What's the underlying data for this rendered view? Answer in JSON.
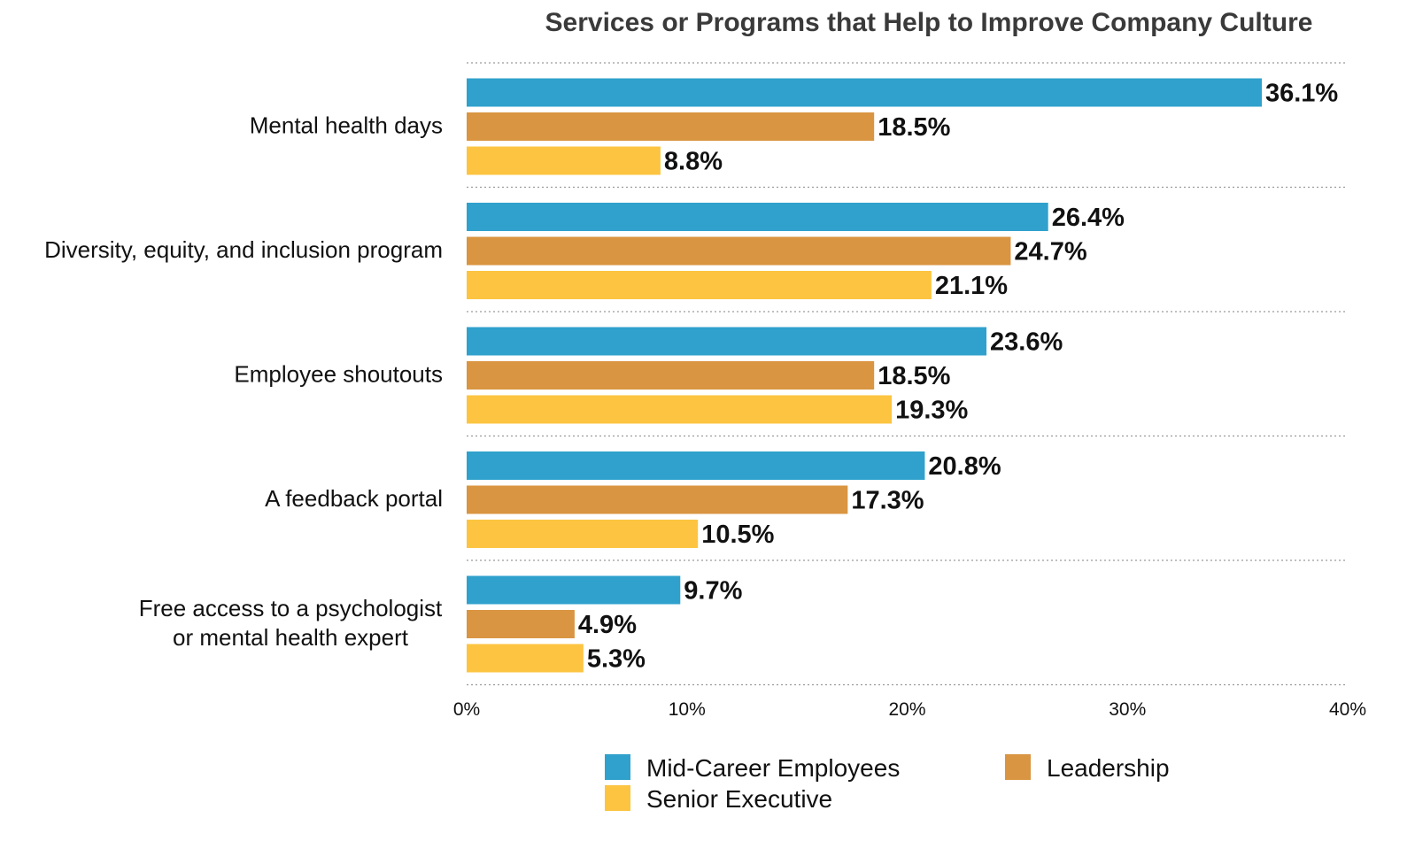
{
  "chart_data": {
    "type": "bar",
    "orientation": "horizontal",
    "title": "Services or Programs that Help to Improve Company Culture",
    "categories": [
      [
        "Mental health days"
      ],
      [
        "Diversity, equity, and inclusion program"
      ],
      [
        "Employee shoutouts"
      ],
      [
        "A feedback portal"
      ],
      [
        "Free access to a psychologist",
        "or mental health expert"
      ]
    ],
    "series": [
      {
        "name": "Mid-Career Employees",
        "color": "#2fa1cc",
        "values": [
          36.1,
          26.4,
          23.6,
          20.8,
          9.7
        ],
        "labels": [
          "36.1%",
          "26.4%",
          "23.6%",
          "20.8%",
          "9.7%"
        ]
      },
      {
        "name": "Leadership",
        "color": "#d99541",
        "values": [
          18.5,
          24.7,
          18.5,
          17.3,
          4.9
        ],
        "labels": [
          "18.5%",
          "24.7%",
          "18.5%",
          "17.3%",
          "4.9%"
        ]
      },
      {
        "name": "Senior Executive",
        "color": "#fcc440",
        "values": [
          8.8,
          21.1,
          19.3,
          10.5,
          5.3
        ],
        "labels": [
          "8.8%",
          "21.1%",
          "19.3%",
          "10.5%",
          "5.3%"
        ]
      }
    ],
    "xlim": [
      0,
      40
    ],
    "xticks": [
      0,
      10,
      20,
      30,
      40
    ],
    "xtick_labels": [
      "0%",
      "10%",
      "20%",
      "30%",
      "40%"
    ],
    "grid": "horizontal dotted separators",
    "legend_position": "bottom"
  }
}
